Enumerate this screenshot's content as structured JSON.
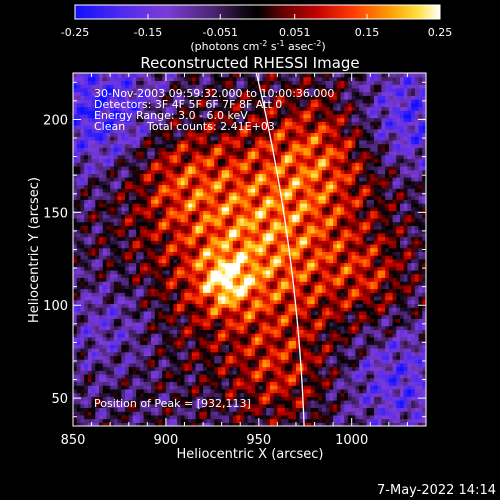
{
  "chart_data": {
    "type": "heatmap",
    "title": "Reconstructed RHESSI Image",
    "xlabel": "Heliocentric X (arcsec)",
    "ylabel": "Heliocentric Y (arcsec)",
    "xlim": [
      850,
      1040
    ],
    "ylim": [
      35,
      225
    ],
    "xticks": [
      850,
      900,
      950,
      1000
    ],
    "yticks": [
      50,
      100,
      150,
      200
    ],
    "colorbar": {
      "range": [
        -0.25,
        0.25
      ],
      "ticks": [
        "-0.25",
        "-0.15",
        "-0.051",
        "0.051",
        "0.15",
        "0.25"
      ],
      "tick_values": [
        -0.25,
        -0.15,
        -0.051,
        0.051,
        0.15,
        0.25
      ],
      "label": "(photons cm-2 s-1 asec-2)",
      "label_parts": [
        "(photons cm",
        "-2",
        " s",
        "-1",
        " asec",
        "-2",
        ")"
      ]
    },
    "annotations": [
      "30-Nov-2003 09:59:32.000 to 10:00:36.000",
      "Detectors: 3F 4F 5F 6F 7F 8F Att 0",
      "Energy Range: 3.0 - 6.0 keV",
      "Clean",
      "Total counts: 2.41E+03"
    ],
    "peak_label": "Position of Peak = [932,113]",
    "peak_position": [
      932,
      113
    ],
    "plot_date": "7-May-2022 14:14",
    "colors": {
      "background": "#000000",
      "text": "#ffffff",
      "limb": "#ffffff"
    }
  }
}
